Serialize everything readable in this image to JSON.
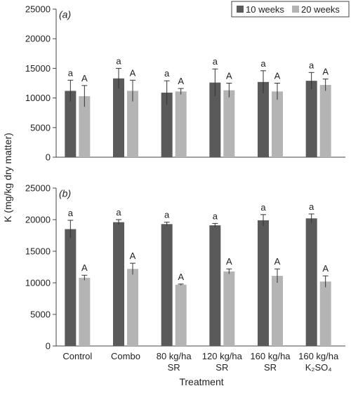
{
  "chart_data": {
    "type": "bar",
    "ylabel": "K (mg/kg dry matter)",
    "xlabel": "Treatment",
    "legend": {
      "position": "top-right",
      "entries": [
        {
          "name": "10 weeks",
          "color": "#5a5a5a"
        },
        {
          "name": "20 weeks",
          "color": "#b4b4b4"
        }
      ]
    },
    "categories": [
      [
        "Control"
      ],
      [
        "Combo"
      ],
      [
        "80 kg/ha",
        "SR"
      ],
      [
        "120 kg/ha",
        "SR"
      ],
      [
        "160 kg/ha",
        "SR"
      ],
      [
        "160 kg/ha",
        "K₂SO₄"
      ]
    ],
    "ylim": [
      0,
      25000
    ],
    "yticks": [
      0,
      5000,
      10000,
      15000,
      20000,
      25000
    ],
    "ytick_labels": [
      "0",
      "5000",
      "10000",
      "15000",
      "20000",
      "25000"
    ],
    "panels": [
      {
        "label": "(a)",
        "series": [
          {
            "name": "10 weeks",
            "values": [
              11200,
              13300,
              10900,
              12600,
              12700,
              12900
            ],
            "errors": [
              1800,
              1700,
              2000,
              2300,
              1900,
              1400
            ],
            "letters": [
              "a",
              "a",
              "a",
              "a",
              "a",
              "a"
            ]
          },
          {
            "name": "20 weeks",
            "values": [
              10300,
              11200,
              11100,
              11300,
              11100,
              12200
            ],
            "errors": [
              1800,
              1800,
              500,
              1200,
              1400,
              1000
            ],
            "letters": [
              "A",
              "A",
              "A",
              "A",
              "A",
              "A"
            ]
          }
        ]
      },
      {
        "label": "(b)",
        "series": [
          {
            "name": "10 weeks",
            "values": [
              18500,
              19600,
              19300,
              19100,
              19900,
              20200
            ],
            "errors": [
              1400,
              400,
              300,
              300,
              900,
              700
            ],
            "letters": [
              "a",
              "a",
              "a",
              "a",
              "a",
              "a"
            ]
          },
          {
            "name": "20 weeks",
            "values": [
              10800,
              12200,
              9700,
              11800,
              11100,
              10200
            ],
            "errors": [
              400,
              900,
              100,
              400,
              1100,
              900
            ],
            "letters": [
              "A",
              "A",
              "A",
              "A",
              "A",
              "A"
            ]
          }
        ]
      }
    ]
  }
}
